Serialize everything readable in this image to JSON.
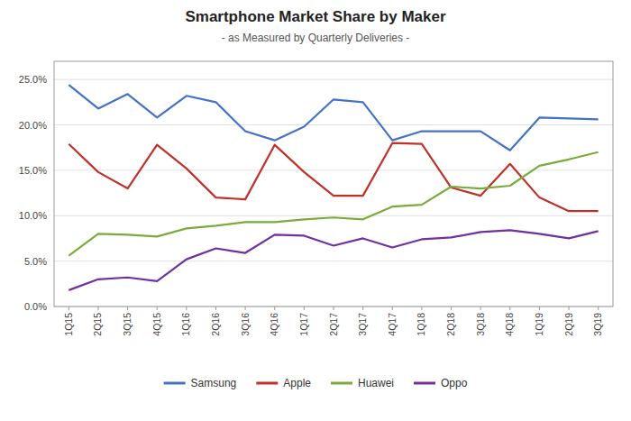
{
  "chart_data": {
    "type": "line",
    "title": "Smartphone Market Share by Maker",
    "subtitle": "- as Measured by Quarterly Deliveries -",
    "categories": [
      "1Q15",
      "2Q15",
      "3Q15",
      "4Q15",
      "1Q16",
      "2Q16",
      "3Q16",
      "4Q16",
      "1Q17",
      "2Q17",
      "3Q17",
      "4Q17",
      "1Q18",
      "2Q18",
      "3Q18",
      "4Q18",
      "1Q19",
      "2Q19",
      "3Q19"
    ],
    "series": [
      {
        "name": "Samsung",
        "color": "#4472C4",
        "values": [
          0.244,
          0.218,
          0.234,
          0.208,
          0.232,
          0.225,
          0.193,
          0.183,
          0.198,
          0.228,
          0.225,
          0.183,
          0.193,
          0.193,
          0.193,
          0.172,
          0.208,
          0.207,
          0.206
        ]
      },
      {
        "name": "Apple",
        "color": "#C0312B",
        "values": [
          0.179,
          0.148,
          0.13,
          0.178,
          0.152,
          0.12,
          0.118,
          0.178,
          0.148,
          0.122,
          0.122,
          0.18,
          0.179,
          0.131,
          0.122,
          0.157,
          0.12,
          0.105,
          0.105
        ]
      },
      {
        "name": "Huawei",
        "color": "#7AAB3B",
        "values": [
          0.056,
          0.08,
          0.079,
          0.077,
          0.086,
          0.089,
          0.093,
          0.093,
          0.096,
          0.098,
          0.096,
          0.11,
          0.112,
          0.132,
          0.13,
          0.133,
          0.155,
          0.162,
          0.17
        ]
      },
      {
        "name": "Oppo",
        "color": "#7030A0",
        "values": [
          0.018,
          0.03,
          0.032,
          0.028,
          0.052,
          0.064,
          0.059,
          0.079,
          0.078,
          0.067,
          0.075,
          0.065,
          0.074,
          0.076,
          0.082,
          0.084,
          0.08,
          0.075,
          0.083
        ]
      }
    ],
    "ylim": [
      0.0,
      0.27
    ],
    "yticks": [
      {
        "value": 0.0,
        "label": "0.0%"
      },
      {
        "value": 0.05,
        "label": "5.0%"
      },
      {
        "value": 0.1,
        "label": "10.0%"
      },
      {
        "value": 0.15,
        "label": "15.0%"
      },
      {
        "value": 0.2,
        "label": "20.0%"
      },
      {
        "value": 0.25,
        "label": "25.0%"
      }
    ],
    "grid": true,
    "legend": "bottom"
  }
}
